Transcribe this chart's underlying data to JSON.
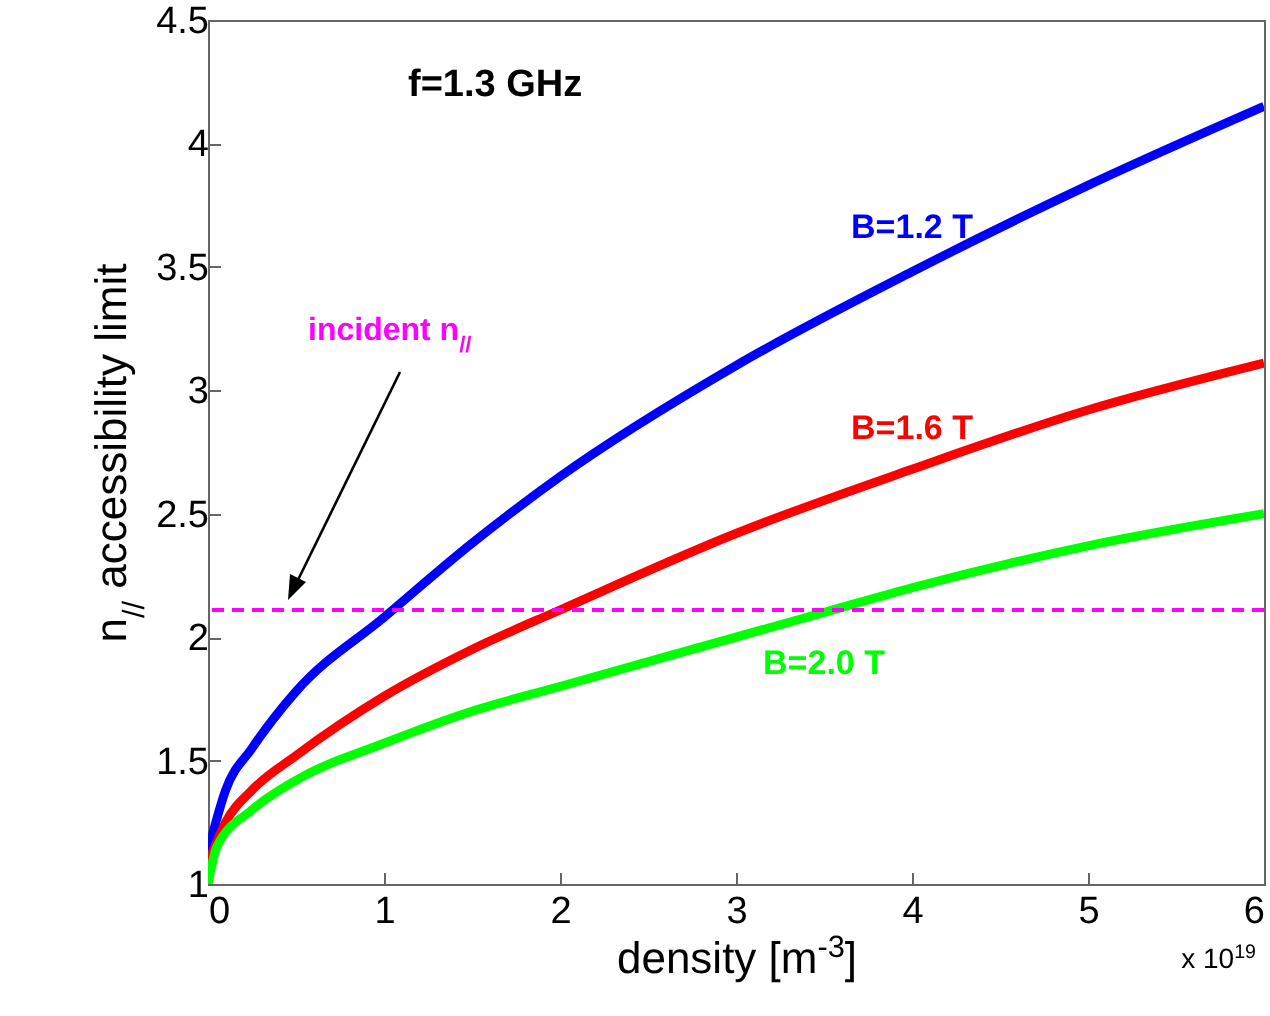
{
  "chart_data": {
    "type": "line",
    "xlabel": "density [m$^{-3}$]",
    "ylabel": "n$_{//}$ accessibility limit",
    "annotations": [
      "f=1.3 GHz",
      "x 10$^{19}$"
    ],
    "xlim": [
      0,
      6
    ],
    "xticks": [
      0,
      1,
      2,
      3,
      4,
      5,
      6
    ],
    "ylim": [
      1,
      4.5
    ],
    "yticks": [
      1,
      1.5,
      2,
      2.5,
      3,
      3.5,
      4,
      4.5
    ],
    "grid": false,
    "series": [
      {
        "name": "B=1.2 T",
        "color": "#0000ff",
        "x": [
          0,
          0.1,
          0.25,
          0.5,
          1,
          1.5,
          2,
          3,
          4,
          5,
          6
        ],
        "values": [
          1.13,
          1.38,
          1.55,
          1.78,
          2.08,
          2.38,
          2.65,
          3.1,
          3.48,
          3.83,
          4.15
        ]
      },
      {
        "name": "B=1.6 T",
        "color": "#ff0000",
        "x": [
          0,
          0.1,
          0.25,
          0.5,
          1,
          1.5,
          2,
          3,
          4,
          5,
          6
        ],
        "values": [
          1.08,
          1.25,
          1.38,
          1.52,
          1.76,
          1.95,
          2.11,
          2.42,
          2.68,
          2.92,
          3.11
        ]
      },
      {
        "name": "B=2.0 T",
        "color": "#00ff00",
        "x": [
          0,
          0.05,
          0.25,
          0.5,
          1,
          1.5,
          2,
          3,
          3.5,
          4,
          5,
          6
        ],
        "values": [
          1.0,
          1.15,
          1.3,
          1.42,
          1.57,
          1.7,
          1.8,
          2.0,
          2.1,
          2.2,
          2.37,
          2.5
        ]
      }
    ],
    "ref_lines": [
      {
        "axis": "y",
        "value": 2.11,
        "label": "incident n$_{//}$",
        "color": "#ff00ff",
        "line_style": "dashed"
      }
    ]
  }
}
